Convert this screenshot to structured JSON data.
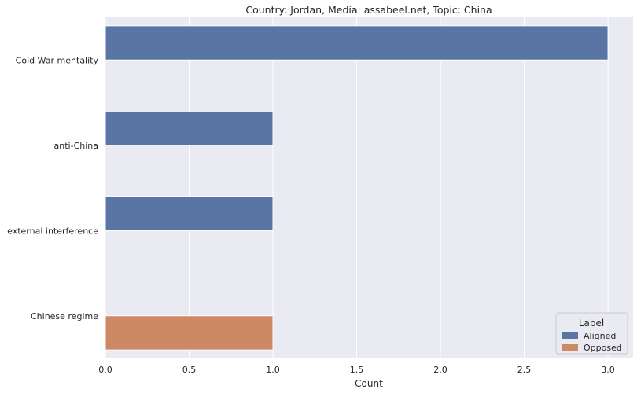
{
  "chart_data": {
    "type": "bar",
    "orientation": "horizontal",
    "title": "Country: Jordan, Media: assabeel.net, Topic: China",
    "xlabel": "Count",
    "ylabel": "",
    "xlim": [
      0,
      3.15
    ],
    "x_ticks": [
      "0.0",
      "0.5",
      "1.0",
      "1.5",
      "2.0",
      "2.5",
      "3.0"
    ],
    "categories": [
      "Cold War mentality",
      "anti-China",
      "external interference",
      "Chinese regime"
    ],
    "series": [
      {
        "name": "Aligned",
        "color": "#5875a4",
        "values": [
          3,
          1,
          1,
          0
        ]
      },
      {
        "name": "Opposed",
        "color": "#cc8963",
        "values": [
          0,
          0,
          0,
          1
        ]
      }
    ],
    "legend": {
      "title": "Label",
      "placement": "lower-right"
    },
    "background": "#eaeaf2",
    "grid": true
  }
}
